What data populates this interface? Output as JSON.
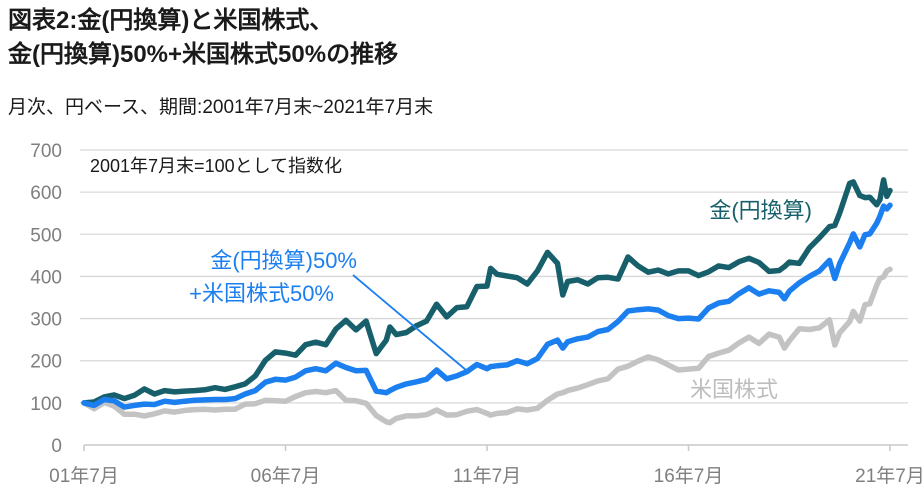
{
  "header": {
    "title_line1": "図表2:金(円換算)と米国株式、",
    "title_line2": "金(円換算)50%+米国株式50%の推移",
    "subtitle": "月次、円ベース、期間:2001年7月末~2021年7月末"
  },
  "chart_data": {
    "type": "line",
    "title": "図表2:金(円換算)と米国株式、金(円換算)50%+米国株式50%の推移",
    "subtitle": "月次、円ベース、期間:2001年7月末~2021年7月末",
    "note": "2001年7月末=100として指数化",
    "grid": true,
    "legend_position": "inline-labels",
    "x_unit": "decimal_year",
    "x": [
      2001.58,
      2001.83,
      2002.08,
      2002.33,
      2002.58,
      2002.83,
      2003.08,
      2003.33,
      2003.58,
      2003.83,
      2004.08,
      2004.33,
      2004.58,
      2004.83,
      2005.08,
      2005.33,
      2005.58,
      2005.83,
      2006.08,
      2006.33,
      2006.58,
      2006.83,
      2007.08,
      2007.33,
      2007.58,
      2007.83,
      2008.08,
      2008.33,
      2008.58,
      2008.83,
      2009.08,
      2009.17,
      2009.33,
      2009.58,
      2009.83,
      2010.08,
      2010.33,
      2010.58,
      2010.83,
      2011.08,
      2011.33,
      2011.58,
      2011.67,
      2011.83,
      2012.08,
      2012.33,
      2012.58,
      2012.83,
      2013.08,
      2013.33,
      2013.46,
      2013.58,
      2013.83,
      2014.08,
      2014.33,
      2014.58,
      2014.83,
      2015.08,
      2015.33,
      2015.58,
      2015.83,
      2016.08,
      2016.33,
      2016.58,
      2016.83,
      2017.08,
      2017.33,
      2017.58,
      2017.83,
      2018.08,
      2018.33,
      2018.58,
      2018.83,
      2018.96,
      2019.08,
      2019.33,
      2019.58,
      2019.83,
      2020.08,
      2020.21,
      2020.33,
      2020.58,
      2020.67,
      2020.83,
      2020.96,
      2021.08,
      2021.25,
      2021.33,
      2021.42,
      2021.5,
      2021.58
    ],
    "series": [
      {
        "name": "金(円換算)",
        "color": "#17606b",
        "values": [
          100,
          102,
          114,
          119,
          110,
          118,
          133,
          121,
          129,
          126,
          128,
          129,
          131,
          136,
          132,
          138,
          145,
          164,
          201,
          221,
          218,
          213,
          238,
          244,
          238,
          275,
          296,
          273,
          294,
          217,
          249,
          280,
          262,
          267,
          283,
          294,
          334,
          304,
          326,
          328,
          376,
          377,
          419,
          405,
          401,
          397,
          382,
          413,
          457,
          431,
          356,
          388,
          392,
          382,
          397,
          398,
          394,
          446,
          425,
          410,
          415,
          406,
          413,
          413,
          402,
          411,
          425,
          421,
          435,
          443,
          433,
          412,
          414,
          423,
          434,
          431,
          468,
          492,
          518,
          521,
          550,
          621,
          624,
          592,
          587,
          588,
          570,
          582,
          629,
          590,
          604
        ]
      },
      {
        "name": "金(円換算)50%+米国株式50%",
        "color": "#1b7ff0",
        "values": [
          100,
          94,
          108,
          105,
          90,
          94,
          97,
          96,
          104,
          101,
          104,
          106,
          107,
          108,
          108,
          110,
          121,
          129,
          149,
          156,
          154,
          161,
          176,
          181,
          176,
          194,
          184,
          176,
          177,
          128,
          124,
          129,
          137,
          145,
          150,
          156,
          178,
          157,
          164,
          174,
          191,
          181,
          186,
          188,
          190,
          200,
          193,
          205,
          239,
          249,
          230,
          245,
          252,
          256,
          269,
          274,
          293,
          318,
          321,
          323,
          320,
          307,
          300,
          301,
          299,
          325,
          337,
          341,
          359,
          373,
          358,
          366,
          362,
          347,
          365,
          385,
          400,
          413,
          438,
          395,
          430,
          480,
          501,
          470,
          499,
          501,
          526,
          543,
          567,
          560,
          569
        ]
      },
      {
        "name": "米国株式",
        "color": "#c3c3c3",
        "values": [
          100,
          86,
          101,
          92,
          73,
          73,
          69,
          74,
          81,
          78,
          82,
          84,
          85,
          83,
          85,
          85,
          97,
          98,
          106,
          105,
          104,
          115,
          124,
          127,
          124,
          129,
          106,
          105,
          99,
          70,
          55,
          53,
          63,
          69,
          69,
          72,
          83,
          71,
          72,
          80,
          84,
          75,
          71,
          75,
          77,
          86,
          83,
          87,
          106,
          121,
          124,
          129,
          135,
          143,
          152,
          157,
          180,
          187,
          199,
          209,
          202,
          190,
          178,
          180,
          182,
          210,
          218,
          225,
          242,
          256,
          241,
          263,
          256,
          230,
          247,
          276,
          274,
          278,
          297,
          237,
          266,
          293,
          317,
          294,
          333,
          335,
          379,
          395,
          399,
          413,
          417
        ]
      }
    ],
    "labels": {
      "gold": "金(円換算)",
      "mix_line1": "金(円換算)50%",
      "mix_line2": "+米国株式50%",
      "us": "米国株式"
    },
    "y_axis": {
      "min": 0,
      "max": 700,
      "step": 100,
      "ticks": [
        0,
        100,
        200,
        300,
        400,
        500,
        600,
        700
      ]
    },
    "x_axis": {
      "tick_positions": [
        2001.58,
        2006.58,
        2011.58,
        2016.58,
        2021.58
      ],
      "tick_labels": [
        "01年7月",
        "06年7月",
        "11年7月",
        "16年7月",
        "21年7月"
      ]
    },
    "colors": {
      "grid": "#d8d8d8",
      "axis": "#c9c9c9",
      "axis_text": "#7f7f7f"
    }
  }
}
